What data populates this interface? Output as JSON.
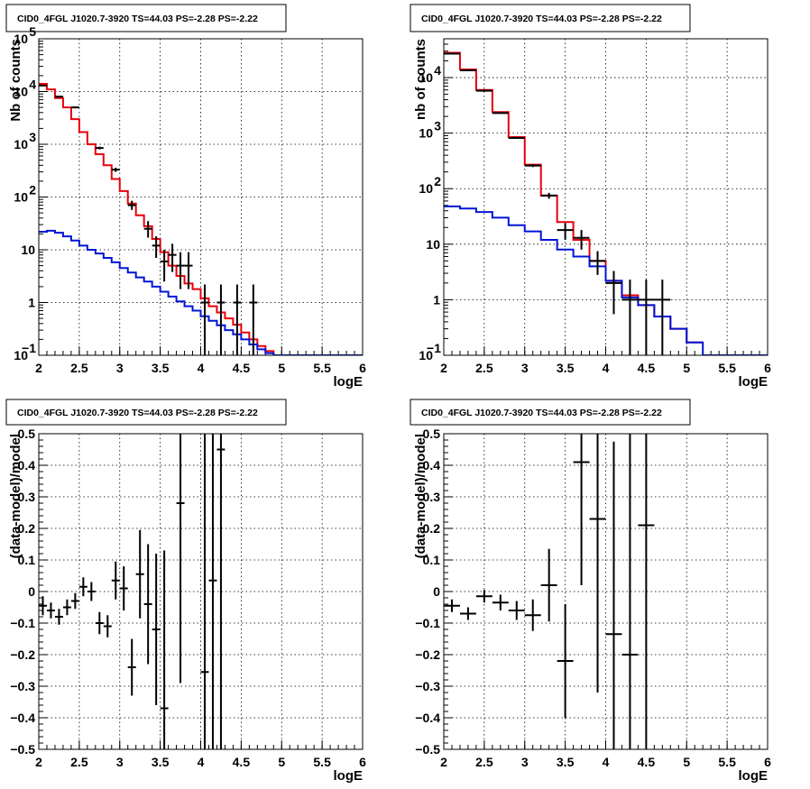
{
  "colors": {
    "data": "#000000",
    "total_model": "#e8000b",
    "source_model": "#0015d6"
  },
  "chart_data": [
    {
      "type": "line",
      "title": "CID0_4FGL J1020.7-3920 TS=44.03 PS=-2.28 PS=-2.22",
      "xlabel": "logE",
      "ylabel": "Nb of counts",
      "xlim": [
        2,
        6
      ],
      "ylim": [
        0.1,
        100000
      ],
      "log_y": true,
      "grid": true,
      "xticks": [
        "2",
        "2.5",
        "3",
        "3.5",
        "4",
        "4.5",
        "5",
        "5.5",
        "6"
      ],
      "yticks": [
        {
          "v": 0.1,
          "label": "10",
          "sup": "−1"
        },
        {
          "v": 1,
          "label": "1",
          "sup": ""
        },
        {
          "v": 10,
          "label": "10",
          "sup": ""
        },
        {
          "v": 100,
          "label": "10",
          "sup": "2"
        },
        {
          "v": 1000,
          "label": "10",
          "sup": "3"
        },
        {
          "v": 10000,
          "label": "10",
          "sup": "4"
        },
        {
          "v": 100000,
          "label": "10",
          "sup": "5"
        }
      ],
      "bin_width": 0.1,
      "series": [
        {
          "kind": "step",
          "color_key": "total_model",
          "x": [
            2.0,
            2.1,
            2.2,
            2.3,
            2.4,
            2.5,
            2.6,
            2.7,
            2.8,
            2.9,
            3.0,
            3.1,
            3.2,
            3.3,
            3.4,
            3.5,
            3.6,
            3.7,
            3.8,
            3.9,
            4.0,
            4.1,
            4.2,
            4.3,
            4.4,
            4.5,
            4.6,
            4.7,
            4.8,
            4.9
          ],
          "values": [
            14000,
            11000,
            7500,
            5000,
            3000,
            1700,
            1000,
            650,
            400,
            220,
            130,
            75,
            45,
            28,
            16,
            9,
            5,
            3.2,
            2.3,
            1.8,
            1.2,
            0.85,
            0.65,
            0.5,
            0.38,
            0.27,
            0.2,
            0.15,
            0.12,
            0.1
          ]
        },
        {
          "kind": "step",
          "color_key": "source_model",
          "x": [
            2.0,
            2.1,
            2.2,
            2.3,
            2.4,
            2.5,
            2.6,
            2.7,
            2.8,
            2.9,
            3.0,
            3.1,
            3.2,
            3.3,
            3.4,
            3.5,
            3.6,
            3.7,
            3.8,
            3.9,
            4.0,
            4.1,
            4.2,
            4.3,
            4.4,
            4.5,
            4.6,
            4.7,
            4.8,
            4.9,
            5.0,
            5.1,
            5.2,
            5.3,
            5.4,
            5.5,
            5.6,
            5.7,
            5.8,
            5.9
          ],
          "values": [
            22,
            23,
            21,
            18,
            15,
            12,
            10,
            8.5,
            7,
            5.8,
            4.5,
            3.7,
            3.0,
            2.5,
            2.0,
            1.6,
            1.3,
            1.05,
            0.85,
            0.7,
            0.55,
            0.45,
            0.37,
            0.3,
            0.25,
            0.2,
            0.16,
            0.13,
            0.11,
            0.1,
            0.1,
            0.1,
            0.1,
            0.1,
            0.1,
            0.1,
            0.1,
            0.1,
            0.1,
            0.1
          ]
        },
        {
          "kind": "points",
          "color_key": "data",
          "x": [
            2.05,
            2.25,
            2.45,
            2.75,
            2.95,
            3.15,
            3.35,
            3.45,
            3.55,
            3.65,
            3.75,
            3.85,
            4.05,
            4.25,
            4.45,
            4.65
          ],
          "y": [
            13000,
            8000,
            5000,
            850,
            330,
            70,
            25,
            12,
            6,
            8,
            5,
            5,
            1,
            1,
            1,
            1
          ],
          "y_low": [
            12600,
            7750,
            4800,
            800,
            300,
            57,
            17,
            7,
            2.5,
            3.8,
            1.8,
            1.8,
            0.1,
            0.1,
            0.1,
            0.1
          ],
          "y_high": [
            13400,
            8250,
            5200,
            900,
            360,
            85,
            35,
            18,
            10,
            13,
            9,
            9,
            2.2,
            2.2,
            2.2,
            2.2
          ]
        }
      ]
    },
    {
      "type": "line",
      "title": "CID0_4FGL J1020.7-3920 TS=44.03 PS=-2.28 PS=-2.22",
      "xlabel": "logE",
      "ylabel": "nb of counts",
      "xlim": [
        2,
        6
      ],
      "ylim": [
        0.1,
        50000
      ],
      "log_y": true,
      "grid": true,
      "xticks": [
        "2",
        "2.5",
        "3",
        "3.5",
        "4",
        "4.5",
        "5",
        "5.5",
        "6"
      ],
      "yticks": [
        {
          "v": 0.1,
          "label": "10",
          "sup": "−1"
        },
        {
          "v": 1,
          "label": "1",
          "sup": ""
        },
        {
          "v": 10,
          "label": "10",
          "sup": ""
        },
        {
          "v": 100,
          "label": "10",
          "sup": "2"
        },
        {
          "v": 1000,
          "label": "10",
          "sup": "3"
        },
        {
          "v": 10000,
          "label": "10",
          "sup": "4"
        }
      ],
      "bin_width": 0.2,
      "series": [
        {
          "kind": "step",
          "color_key": "total_model",
          "x": [
            2.0,
            2.2,
            2.4,
            2.6,
            2.8,
            3.0,
            3.2,
            3.4,
            3.6,
            3.8,
            4.0,
            4.2,
            4.4,
            4.6,
            4.8,
            5.0
          ],
          "values": [
            28000,
            14000,
            6000,
            2400,
            850,
            270,
            75,
            25,
            12,
            5,
            2.2,
            1.2,
            0.8,
            0.5,
            0.3,
            0.17
          ]
        },
        {
          "kind": "step",
          "color_key": "source_model",
          "x": [
            2.0,
            2.2,
            2.4,
            2.6,
            2.8,
            3.0,
            3.2,
            3.4,
            3.6,
            3.8,
            4.0,
            4.2,
            4.4,
            4.6,
            4.8,
            5.0,
            5.2,
            5.4,
            5.6,
            5.8
          ],
          "values": [
            48,
            44,
            38,
            30,
            22,
            17,
            12,
            8,
            6,
            4,
            2.2,
            1.1,
            0.8,
            0.5,
            0.3,
            0.17,
            0.1,
            0.1,
            0.1,
            0.1
          ]
        },
        {
          "kind": "points",
          "color_key": "data",
          "x": [
            2.1,
            2.3,
            2.5,
            2.7,
            2.9,
            3.1,
            3.3,
            3.5,
            3.7,
            3.9,
            4.1,
            4.3,
            4.5,
            4.7
          ],
          "y": [
            27000,
            13500,
            5800,
            2300,
            820,
            260,
            75,
            18,
            13,
            5,
            2,
            1,
            1,
            1
          ],
          "y_low": [
            26500,
            13200,
            5600,
            2250,
            790,
            245,
            66,
            12,
            8,
            2.8,
            0.55,
            0.1,
            0.1,
            0.1
          ],
          "y_high": [
            27500,
            13800,
            6000,
            2350,
            850,
            275,
            84,
            24,
            18,
            7.5,
            3.3,
            2.3,
            2.3,
            2.3
          ]
        }
      ]
    },
    {
      "type": "scatter",
      "title": "CID0_4FGL J1020.7-3920 TS=44.03 PS=-2.28 PS=-2.22",
      "xlabel": "logE",
      "ylabel": "(data-model)/model",
      "xlim": [
        2,
        6
      ],
      "ylim": [
        -0.5,
        0.5
      ],
      "log_y": false,
      "grid": true,
      "xticks": [
        "2",
        "2.5",
        "3",
        "3.5",
        "4",
        "4.5",
        "5",
        "5.5",
        "6"
      ],
      "yticks": [
        {
          "v": -0.5,
          "label": "−0.5",
          "sup": ""
        },
        {
          "v": -0.4,
          "label": "−0.4",
          "sup": ""
        },
        {
          "v": -0.3,
          "label": "−0.3",
          "sup": ""
        },
        {
          "v": -0.2,
          "label": "−0.2",
          "sup": ""
        },
        {
          "v": -0.1,
          "label": "−0.1",
          "sup": ""
        },
        {
          "v": 0,
          "label": "0",
          "sup": ""
        },
        {
          "v": 0.1,
          "label": "0.1",
          "sup": ""
        },
        {
          "v": 0.2,
          "label": "0.2",
          "sup": ""
        },
        {
          "v": 0.3,
          "label": "0.3",
          "sup": ""
        },
        {
          "v": 0.4,
          "label": "0.4",
          "sup": ""
        },
        {
          "v": 0.5,
          "label": "0.5",
          "sup": ""
        }
      ],
      "bin_width": 0.1,
      "series": [
        {
          "kind": "points",
          "color_key": "data",
          "x": [
            2.05,
            2.15,
            2.25,
            2.35,
            2.45,
            2.55,
            2.65,
            2.75,
            2.85,
            2.95,
            3.05,
            3.15,
            3.25,
            3.35,
            3.45,
            3.55,
            3.75,
            4.05,
            4.15,
            4.25
          ],
          "y": [
            -0.045,
            -0.06,
            -0.08,
            -0.05,
            -0.03,
            0.015,
            0.0,
            -0.1,
            -0.11,
            0.035,
            0.01,
            -0.24,
            0.055,
            -0.04,
            -0.12,
            -0.37,
            0.28,
            -0.255,
            0.035,
            0.45
          ],
          "y_err": [
            0.03,
            0.025,
            0.025,
            0.025,
            0.025,
            0.03,
            0.03,
            0.035,
            0.035,
            0.06,
            0.07,
            0.09,
            0.14,
            0.19,
            0.24,
            0.5,
            0.57,
            0.9,
            0.9,
            1.0
          ]
        }
      ]
    },
    {
      "type": "scatter",
      "title": "CID0_4FGL J1020.7-3920 TS=44.03 PS=-2.28 PS=-2.22",
      "xlabel": "logE",
      "ylabel": "(data-model)/model",
      "xlim": [
        2,
        6
      ],
      "ylim": [
        -0.5,
        0.5
      ],
      "log_y": false,
      "grid": true,
      "xticks": [
        "2",
        "2.5",
        "3",
        "3.5",
        "4",
        "4.5",
        "5",
        "5.5",
        "6"
      ],
      "yticks": [
        {
          "v": -0.5,
          "label": "−0.5",
          "sup": ""
        },
        {
          "v": -0.4,
          "label": "−0.4",
          "sup": ""
        },
        {
          "v": -0.3,
          "label": "−0.3",
          "sup": ""
        },
        {
          "v": -0.2,
          "label": "−0.2",
          "sup": ""
        },
        {
          "v": -0.1,
          "label": "−0.1",
          "sup": ""
        },
        {
          "v": 0,
          "label": "0",
          "sup": ""
        },
        {
          "v": 0.1,
          "label": "0.1",
          "sup": ""
        },
        {
          "v": 0.2,
          "label": "0.2",
          "sup": ""
        },
        {
          "v": 0.3,
          "label": "0.3",
          "sup": ""
        },
        {
          "v": 0.4,
          "label": "0.4",
          "sup": ""
        },
        {
          "v": 0.5,
          "label": "0.5",
          "sup": ""
        }
      ],
      "bin_width": 0.2,
      "series": [
        {
          "kind": "points",
          "color_key": "data",
          "x": [
            2.1,
            2.3,
            2.5,
            2.7,
            2.9,
            3.1,
            3.3,
            3.5,
            3.7,
            3.9,
            4.1,
            4.3,
            4.5
          ],
          "y": [
            -0.045,
            -0.07,
            -0.015,
            -0.035,
            -0.06,
            -0.075,
            0.02,
            -0.22,
            0.41,
            0.23,
            -0.135,
            -0.2,
            0.21
          ],
          "y_err": [
            0.02,
            0.02,
            0.02,
            0.025,
            0.03,
            0.05,
            0.115,
            0.18,
            0.39,
            0.55,
            0.61,
            1.0,
            1.0
          ]
        }
      ]
    }
  ]
}
